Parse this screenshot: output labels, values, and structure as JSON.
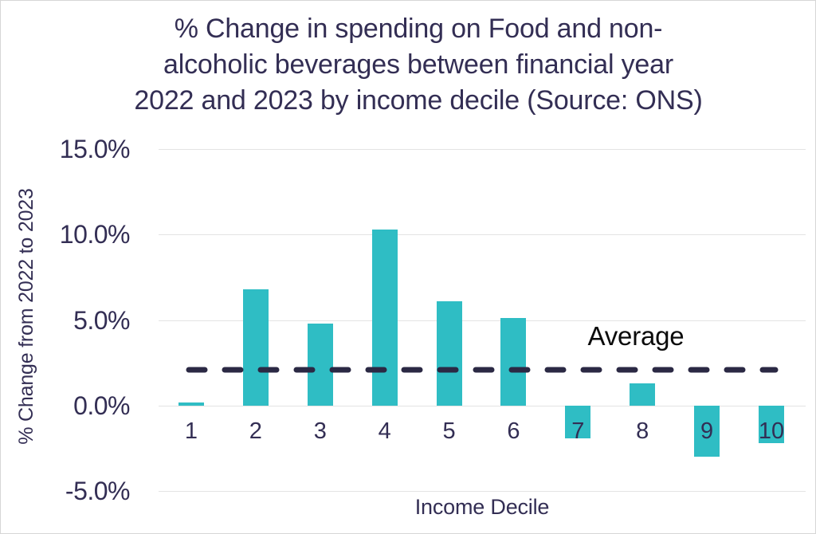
{
  "title_lines": [
    "% Change in spending on Food and non-",
    "alcoholic beverages between financial year",
    "2022 and 2023 by income decile (Source: ONS)"
  ],
  "chart_data": {
    "type": "bar",
    "title": "% Change in spending on Food and non-alcoholic beverages between financial year 2022 and 2023 by income decile (Source: ONS)",
    "xlabel": "Income Decile",
    "ylabel": "% Change from 2022 to 2023",
    "categories": [
      "1",
      "2",
      "3",
      "4",
      "5",
      "6",
      "7",
      "8",
      "9",
      "10"
    ],
    "values": [
      0.2,
      6.8,
      4.8,
      10.3,
      6.1,
      5.1,
      -1.9,
      1.3,
      -3.0,
      -2.2
    ],
    "yticks": [
      {
        "label": "15.0%",
        "value": 15
      },
      {
        "label": "10.0%",
        "value": 10
      },
      {
        "label": "5.0%",
        "value": 5
      },
      {
        "label": "0.0%",
        "value": 0
      },
      {
        "label": "-5.0%",
        "value": -5
      }
    ],
    "ylim": [
      -5,
      15
    ],
    "grid": "horizontal",
    "legend_position": "none",
    "average_line": {
      "label": "Average",
      "value": 2.1,
      "style": "dashed"
    },
    "colors": {
      "bar": "#2fbdc4",
      "average_line": "#2b2944",
      "text": "#332e54",
      "average_label_text": "#0b0b0b",
      "gridline": "#e3e3e3",
      "background": "#ffffff",
      "border": "#d6d6d6"
    }
  }
}
